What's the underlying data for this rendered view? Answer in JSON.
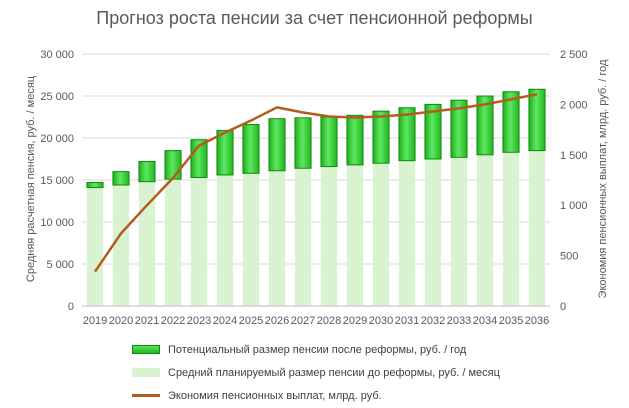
{
  "title": "Прогноз роста пенсии за счет пенсионной реформы",
  "colors": {
    "increase_bar": "#27c427",
    "increase_bar_border": "#0f8a0f",
    "base_bar": "#d9f2d0",
    "savings_line": "#b35c1e",
    "grid": "#d9d9d9",
    "text": "#595959"
  },
  "chart_data": {
    "type": "bar",
    "title": "Прогноз роста пенсии за счет пенсионной реформы",
    "categories": [
      "2019",
      "2020",
      "2021",
      "2022",
      "2023",
      "2024",
      "2025",
      "2026",
      "2027",
      "2028",
      "2029",
      "2030",
      "2031",
      "2032",
      "2033",
      "2034",
      "2035",
      "2036"
    ],
    "ylabel": "Средняя расчетная пенсия, руб. / месяц",
    "y2label": "Экономия пенсионных выплат, млрд. руб. / год",
    "ylim": [
      0,
      30000
    ],
    "y2lim": [
      0,
      2500
    ],
    "y_ticks": [
      "0",
      "5 000",
      "10 000",
      "15 000",
      "20 000",
      "25 000",
      "30 000"
    ],
    "y2_ticks": [
      "0",
      "500",
      "1 000",
      "1 500",
      "2 000",
      "2 500"
    ],
    "grid": true,
    "legend_position": "bottom",
    "series": [
      {
        "name": "Средний планируемый размер пенсии до реформы, руб. / месяц",
        "kind": "bar-base",
        "axis": "left",
        "values": [
          14100,
          14400,
          14800,
          15100,
          15300,
          15600,
          15800,
          16100,
          16400,
          16600,
          16800,
          17000,
          17300,
          17500,
          17700,
          18000,
          18300,
          18500
        ]
      },
      {
        "name": "Потенциальный размер пенсии после реформы, руб. / год",
        "kind": "bar-stacked-top",
        "axis": "left",
        "values": [
          14700,
          16000,
          17200,
          18500,
          19800,
          20900,
          21600,
          22300,
          22400,
          22500,
          22700,
          23200,
          23600,
          24000,
          24500,
          25000,
          25500,
          25800
        ]
      },
      {
        "name": "Экономия пенсионных выплат, млрд. руб.",
        "kind": "line",
        "axis": "right",
        "values": [
          340,
          720,
          1000,
          1270,
          1590,
          1720,
          1840,
          1970,
          1920,
          1880,
          1870,
          1880,
          1900,
          1930,
          1960,
          2000,
          2050,
          2100
        ]
      }
    ]
  }
}
